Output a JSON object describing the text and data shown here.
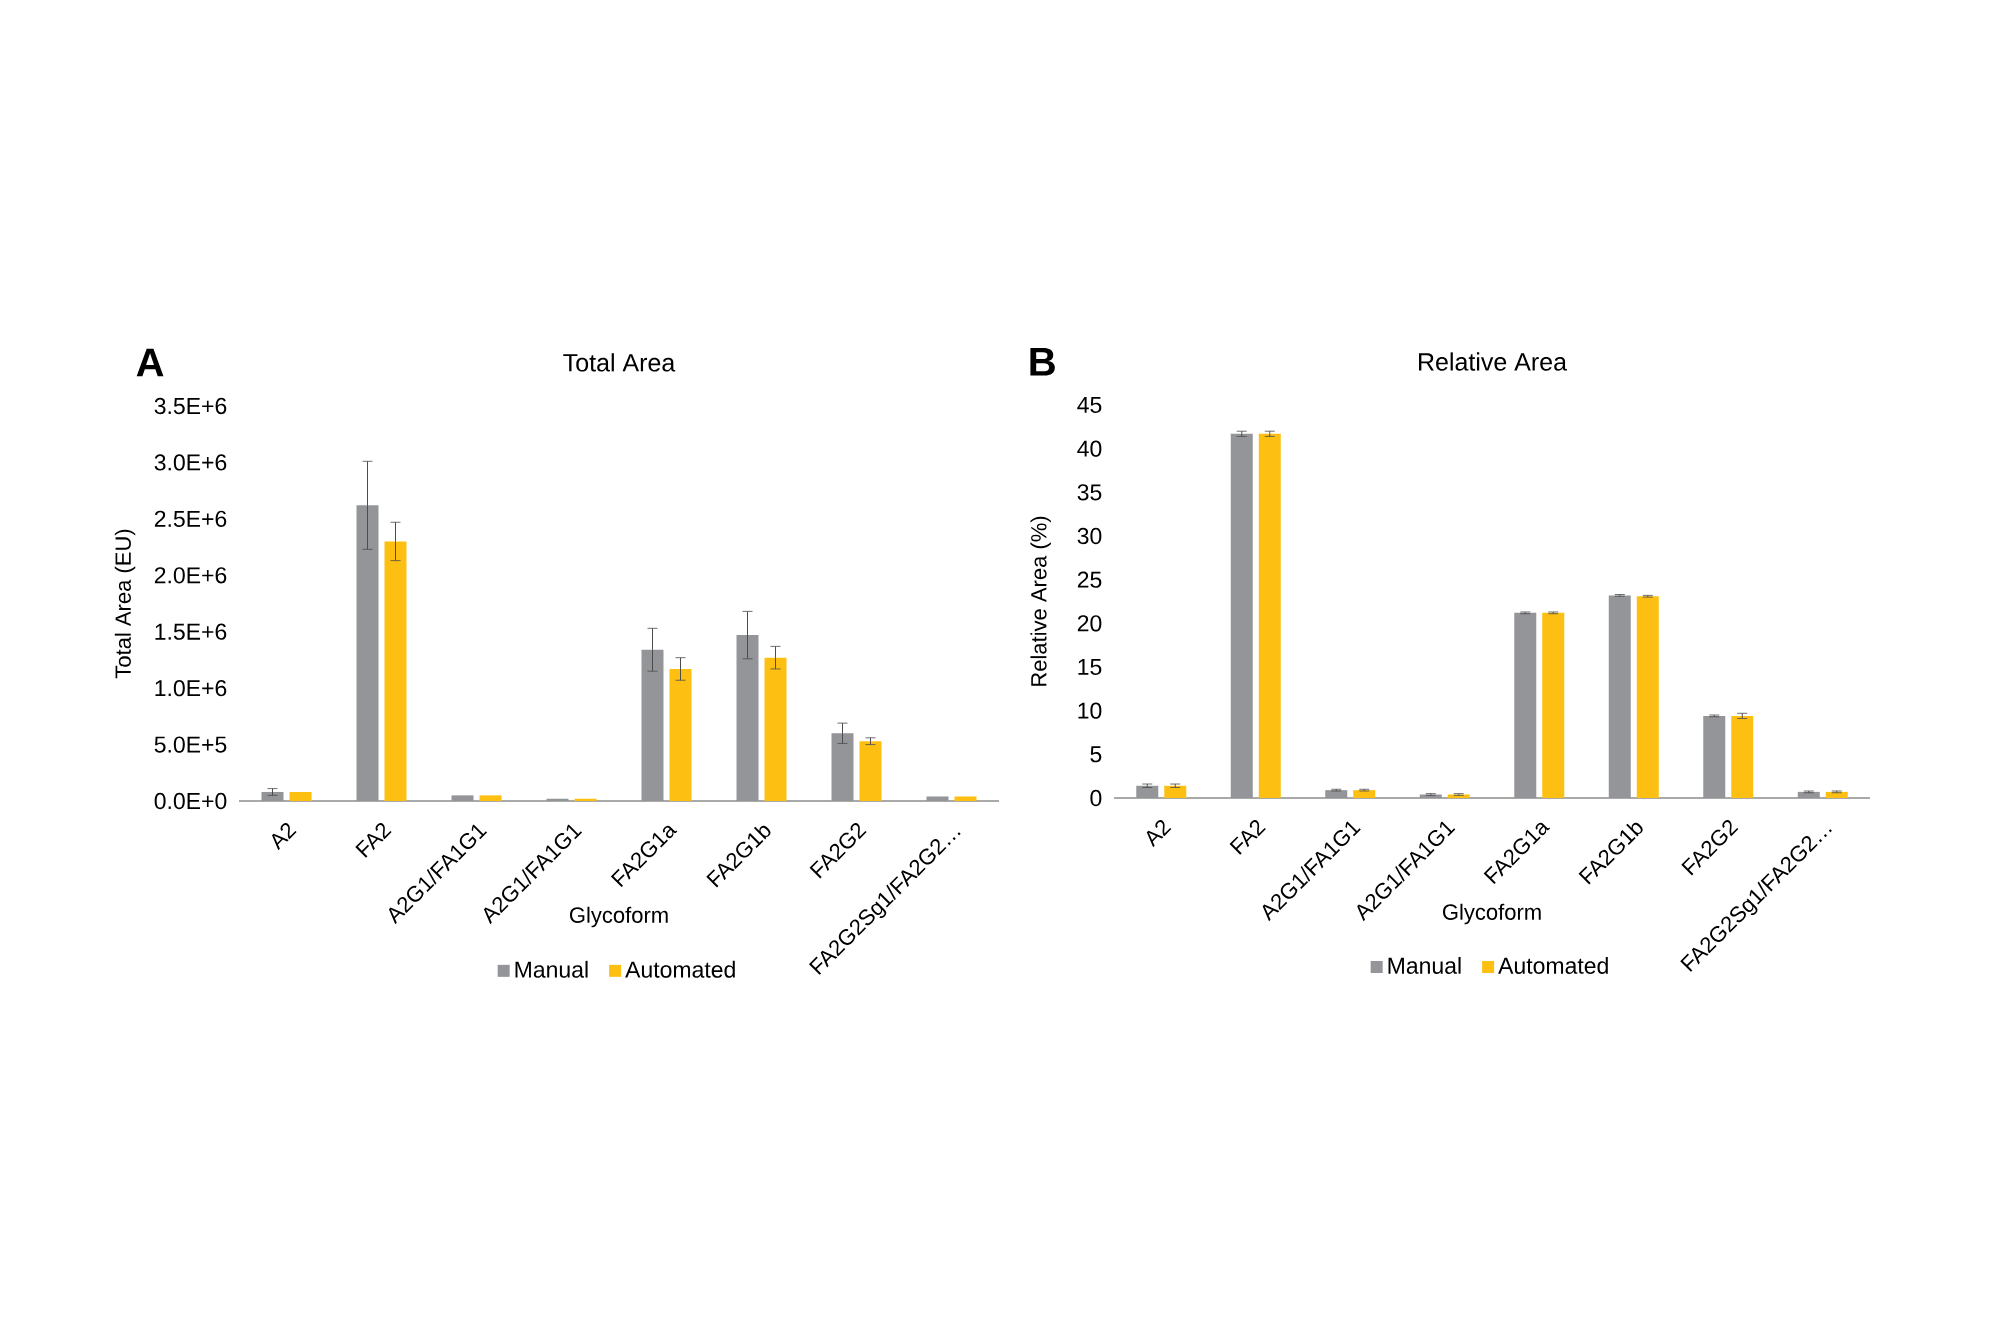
{
  "chart_data": [
    {
      "type": "bar",
      "title": "Total Area",
      "xlabel": "Glycoform",
      "ylabel": "Total Area (EU)",
      "annotations": [
        "A"
      ],
      "categories": [
        "A2",
        "FA2",
        "A2G1/FA1G1",
        "A2G1/FA1G1",
        "FA2G1a",
        "FA2G1b",
        "FA2G2",
        "FA2G2Sg1/FA2G2…"
      ],
      "series": [
        {
          "name": "Manual",
          "color": "#939598",
          "values": [
            80000,
            2620000,
            50000,
            20000,
            1340000,
            1470000,
            600000,
            40000
          ],
          "errors": [
            30000,
            390000,
            null,
            null,
            190000,
            210000,
            90000,
            null
          ]
        },
        {
          "name": "Automated",
          "color": "#fdbf11",
          "values": [
            80000,
            2300000,
            50000,
            20000,
            1170000,
            1270000,
            530000,
            40000
          ],
          "errors": [
            null,
            170000,
            null,
            null,
            100000,
            100000,
            30000,
            null
          ]
        }
      ],
      "ylim": [
        0,
        3500000
      ],
      "yticks": [
        {
          "value": 0,
          "label": "0.0E+0"
        },
        {
          "value": 500000,
          "label": "5.0E+5"
        },
        {
          "value": 1000000,
          "label": "1.0E+6"
        },
        {
          "value": 1500000,
          "label": "1.5E+6"
        },
        {
          "value": 2000000,
          "label": "2.0E+6"
        },
        {
          "value": 2500000,
          "label": "2.5E+6"
        },
        {
          "value": 3000000,
          "label": "3.0E+6"
        },
        {
          "value": 3500000,
          "label": "3.5E+6"
        }
      ],
      "legend": "bottom"
    },
    {
      "type": "bar",
      "title": "Relative Area",
      "xlabel": "Glycoform",
      "ylabel": "Relative Area (%)",
      "annotations": [
        "B"
      ],
      "categories": [
        "A2",
        "FA2",
        "A2G1/FA1G1",
        "A2G1/FA1G1",
        "FA2G1a",
        "FA2G1b",
        "FA2G2",
        "FA2G2Sg1/FA2G2…"
      ],
      "series": [
        {
          "name": "Manual",
          "color": "#939598",
          "values": [
            1.4,
            41.7,
            0.9,
            0.4,
            21.2,
            23.2,
            9.4,
            0.7
          ],
          "errors": [
            0.2,
            0.3,
            0.1,
            0.1,
            0.1,
            0.1,
            0.1,
            0.1
          ]
        },
        {
          "name": "Automated",
          "color": "#fdbf11",
          "values": [
            1.4,
            41.7,
            0.9,
            0.4,
            21.2,
            23.1,
            9.4,
            0.7
          ],
          "errors": [
            0.2,
            0.3,
            0.1,
            0.1,
            0.1,
            0.1,
            0.3,
            0.1
          ]
        }
      ],
      "ylim": [
        0,
        45
      ],
      "yticks": [
        0,
        5,
        10,
        15,
        20,
        25,
        30,
        35,
        40,
        45
      ],
      "legend": "bottom"
    }
  ]
}
